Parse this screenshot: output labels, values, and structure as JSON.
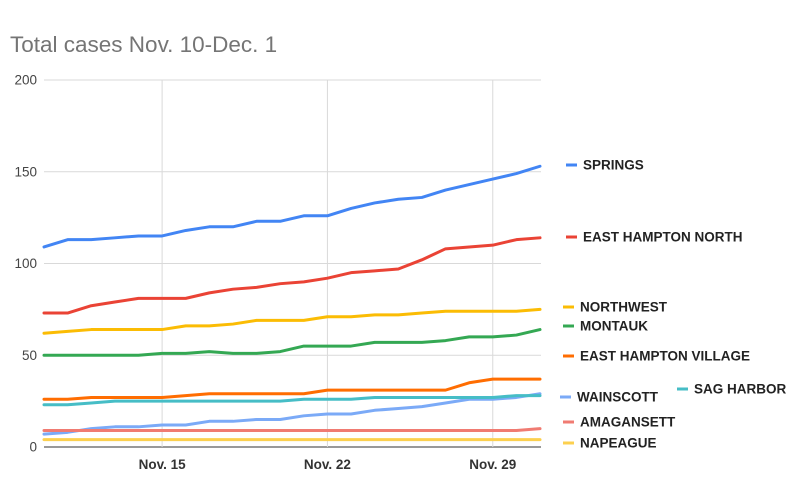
{
  "chart_data": {
    "type": "line",
    "title": "Total cases Nov. 10-Dec. 1",
    "x": [
      "Nov. 10",
      "Nov. 11",
      "Nov. 12",
      "Nov. 13",
      "Nov. 14",
      "Nov. 15",
      "Nov. 16",
      "Nov. 17",
      "Nov. 18",
      "Nov. 19",
      "Nov. 20",
      "Nov. 21",
      "Nov. 22",
      "Nov. 23",
      "Nov. 24",
      "Nov. 25",
      "Nov. 26",
      "Nov. 27",
      "Nov. 28",
      "Nov. 29",
      "Nov. 30",
      "Dec. 1"
    ],
    "x_ticks": [
      "Nov. 15",
      "Nov. 22",
      "Nov. 29"
    ],
    "y_ticks": [
      0,
      50,
      100,
      150,
      200
    ],
    "ylim": [
      0,
      200
    ],
    "grid": true,
    "legend": "right",
    "series": [
      {
        "name": "SPRINGS",
        "color": "#4285F4",
        "values": [
          109,
          113,
          113,
          114,
          115,
          115,
          118,
          120,
          120,
          123,
          123,
          126,
          126,
          130,
          133,
          135,
          136,
          140,
          143,
          146,
          149,
          153
        ]
      },
      {
        "name": "EAST HAMPTON NORTH",
        "color": "#EA4335",
        "values": [
          73,
          73,
          77,
          79,
          81,
          81,
          81,
          84,
          86,
          87,
          89,
          90,
          92,
          95,
          96,
          97,
          102,
          108,
          109,
          110,
          113,
          114
        ]
      },
      {
        "name": "NORTHWEST",
        "color": "#FBBC04",
        "values": [
          62,
          63,
          64,
          64,
          64,
          64,
          66,
          66,
          67,
          69,
          69,
          69,
          71,
          71,
          72,
          72,
          73,
          74,
          74,
          74,
          74,
          75
        ]
      },
      {
        "name": "MONTAUK",
        "color": "#34A853",
        "values": [
          50,
          50,
          50,
          50,
          50,
          51,
          51,
          52,
          51,
          51,
          52,
          55,
          55,
          55,
          57,
          57,
          57,
          58,
          60,
          60,
          61,
          64
        ]
      },
      {
        "name": "EAST HAMPTON VILLAGE",
        "color": "#FF6D01",
        "values": [
          26,
          26,
          27,
          27,
          27,
          27,
          28,
          29,
          29,
          29,
          29,
          29,
          31,
          31,
          31,
          31,
          31,
          31,
          35,
          37,
          37,
          37
        ]
      },
      {
        "name": "WAINSCOTT",
        "color": "#7BAAF7",
        "values": [
          7,
          8,
          10,
          11,
          11,
          12,
          12,
          14,
          14,
          15,
          15,
          17,
          18,
          18,
          20,
          21,
          22,
          24,
          26,
          26,
          27,
          29
        ]
      },
      {
        "name": "SAG HARBOR",
        "color": "#46BDC6",
        "values": [
          23,
          23,
          24,
          25,
          25,
          25,
          25,
          25,
          25,
          25,
          25,
          26,
          26,
          26,
          27,
          27,
          27,
          27,
          27,
          27,
          28,
          28
        ]
      },
      {
        "name": "AMAGANSETT",
        "color": "#F07B72",
        "values": [
          9,
          9,
          9,
          9,
          9,
          9,
          9,
          9,
          9,
          9,
          9,
          9,
          9,
          9,
          9,
          9,
          9,
          9,
          9,
          9,
          9,
          10
        ]
      },
      {
        "name": "NAPEAGUE",
        "color": "#FCD04F",
        "values": [
          4,
          4,
          4,
          4,
          4,
          4,
          4,
          4,
          4,
          4,
          4,
          4,
          4,
          4,
          4,
          4,
          4,
          4,
          4,
          4,
          4,
          4
        ]
      }
    ]
  }
}
